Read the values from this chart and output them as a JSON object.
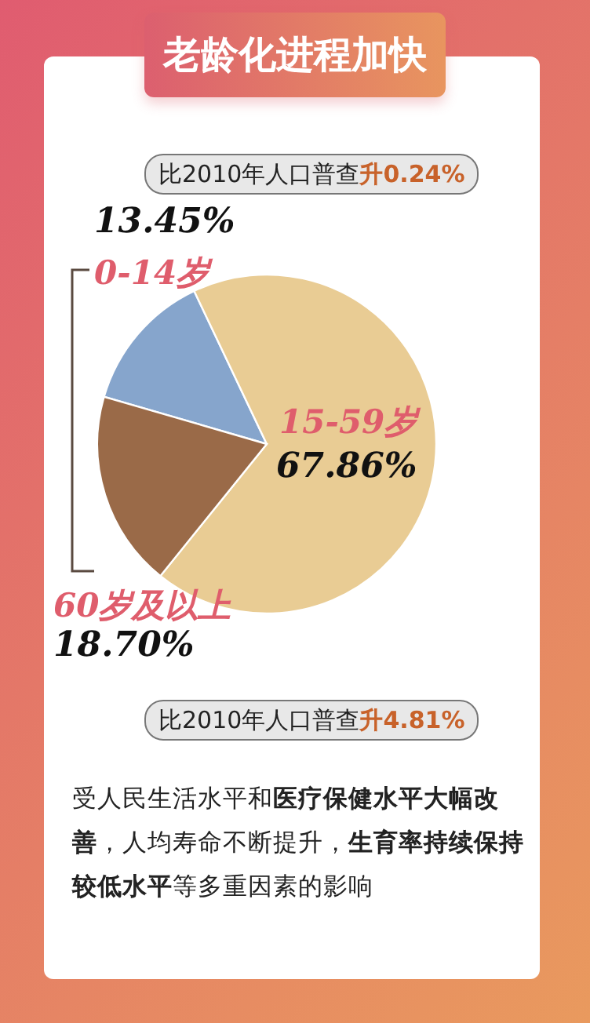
{
  "chart_data": {
    "type": "pie",
    "title": "老龄化进程加快",
    "categories": [
      "0-14岁",
      "15-59岁",
      "60岁及以上"
    ],
    "values": [
      13.45,
      67.86,
      18.7
    ],
    "colors": [
      "#86a5cc",
      "#e9cc94",
      "#9a6a48"
    ],
    "value_labels": [
      "13.45%",
      "67.86%",
      "18.70%"
    ],
    "annotations": [
      "比2010年人口普查**升0.24%**",
      "比2010年人口普查**升4.81%**",
      "受人民生活水平和**医疗保健水平大幅改善**，人均寿命不断提升，**生育率持续保持较低水平**等多重因素的影响"
    ]
  }
}
